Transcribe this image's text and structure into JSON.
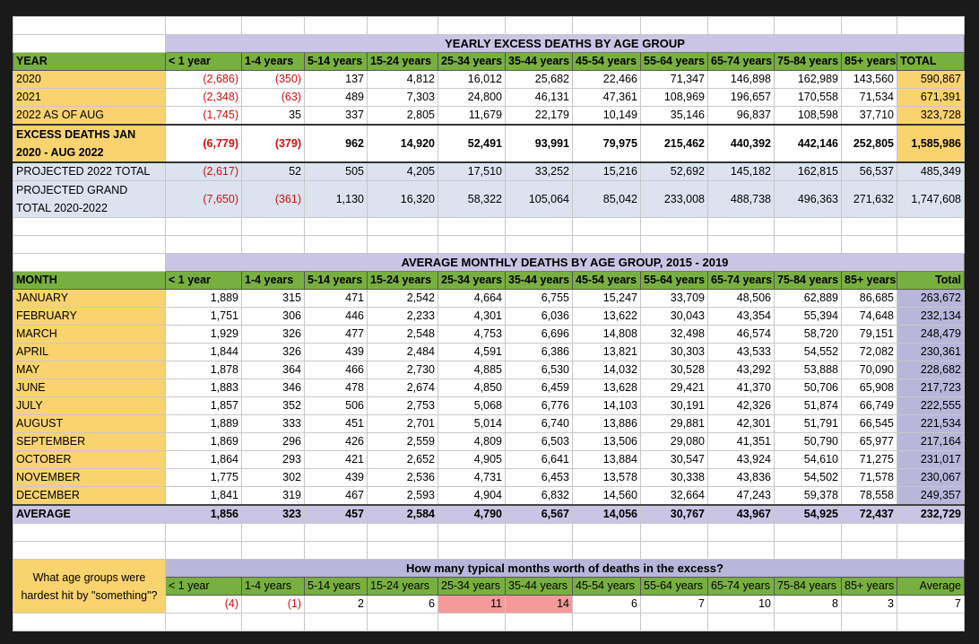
{
  "yearly": {
    "title": "YEARLY EXCESS DEATHS BY AGE GROUP",
    "headers": [
      "YEAR",
      "< 1 year",
      "1-4 years",
      "5-14 years",
      "15-24 years",
      "25-34 years",
      "35-44 years",
      "45-54 years",
      "55-64 years",
      "65-74 years",
      "75-84 years",
      "85+ years",
      "TOTAL"
    ],
    "rows": [
      [
        "2020",
        "(2,686)",
        "(350)",
        "137",
        "4,812",
        "16,012",
        "25,682",
        "22,466",
        "71,347",
        "146,898",
        "162,989",
        "143,560",
        "590,867"
      ],
      [
        "2021",
        "(2,348)",
        "(63)",
        "489",
        "7,303",
        "24,800",
        "46,131",
        "47,361",
        "108,969",
        "196,657",
        "170,558",
        "71,534",
        "671,391"
      ],
      [
        "2022 AS OF AUG",
        "(1,745)",
        "35",
        "337",
        "2,805",
        "11,679",
        "22,179",
        "10,149",
        "35,146",
        "96,837",
        "108,598",
        "37,710",
        "323,728"
      ],
      [
        "EXCESS DEATHS JAN 2020 - AUG 2022",
        "(6,779)",
        "(379)",
        "962",
        "14,920",
        "52,491",
        "93,991",
        "79,975",
        "215,462",
        "440,392",
        "442,146",
        "252,805",
        "1,585,986"
      ],
      [
        "PROJECTED 2022 TOTAL",
        "(2,617)",
        "52",
        "505",
        "4,205",
        "17,510",
        "33,252",
        "15,216",
        "52,692",
        "145,182",
        "162,815",
        "56,537",
        "485,349"
      ],
      [
        "PROJECTED GRAND TOTAL 2020-2022",
        "(7,650)",
        "(361)",
        "1,130",
        "16,320",
        "58,322",
        "105,064",
        "85,042",
        "233,008",
        "488,738",
        "496,363",
        "271,632",
        "1,747,608"
      ]
    ]
  },
  "monthly": {
    "title": "AVERAGE MONTHLY DEATHS BY AGE GROUP, 2015 - 2019",
    "headers": [
      "MONTH",
      "< 1 year",
      "1-4 years",
      "5-14 years",
      "15-24 years",
      "25-34 years",
      "35-44 years",
      "45-54 years",
      "55-64 years",
      "65-74 years",
      "75-84 years",
      "85+ years",
      "Total"
    ],
    "rows": [
      [
        "JANUARY",
        "1,889",
        "315",
        "471",
        "2,542",
        "4,664",
        "6,755",
        "15,247",
        "33,709",
        "48,506",
        "62,889",
        "86,685",
        "263,672"
      ],
      [
        "FEBRUARY",
        "1,751",
        "306",
        "446",
        "2,233",
        "4,301",
        "6,036",
        "13,622",
        "30,043",
        "43,354",
        "55,394",
        "74,648",
        "232,134"
      ],
      [
        "MARCH",
        "1,929",
        "326",
        "477",
        "2,548",
        "4,753",
        "6,696",
        "14,808",
        "32,498",
        "46,574",
        "58,720",
        "79,151",
        "248,479"
      ],
      [
        "APRIL",
        "1,844",
        "326",
        "439",
        "2,484",
        "4,591",
        "6,386",
        "13,821",
        "30,303",
        "43,533",
        "54,552",
        "72,082",
        "230,361"
      ],
      [
        "MAY",
        "1,878",
        "364",
        "466",
        "2,730",
        "4,885",
        "6,530",
        "14,032",
        "30,528",
        "43,292",
        "53,888",
        "70,090",
        "228,682"
      ],
      [
        "JUNE",
        "1,883",
        "346",
        "478",
        "2,674",
        "4,850",
        "6,459",
        "13,628",
        "29,421",
        "41,370",
        "50,706",
        "65,908",
        "217,723"
      ],
      [
        "JULY",
        "1,857",
        "352",
        "506",
        "2,753",
        "5,068",
        "6,776",
        "14,103",
        "30,191",
        "42,326",
        "51,874",
        "66,749",
        "222,555"
      ],
      [
        "AUGUST",
        "1,889",
        "333",
        "451",
        "2,701",
        "5,014",
        "6,740",
        "13,886",
        "29,881",
        "42,301",
        "51,791",
        "66,545",
        "221,534"
      ],
      [
        "SEPTEMBER",
        "1,869",
        "296",
        "426",
        "2,559",
        "4,809",
        "6,503",
        "13,506",
        "29,080",
        "41,351",
        "50,790",
        "65,977",
        "217,164"
      ],
      [
        "OCTOBER",
        "1,864",
        "293",
        "421",
        "2,652",
        "4,905",
        "6,641",
        "13,884",
        "30,547",
        "43,924",
        "54,610",
        "71,275",
        "231,017"
      ],
      [
        "NOVEMBER",
        "1,775",
        "302",
        "439",
        "2,536",
        "4,731",
        "6,453",
        "13,578",
        "30,338",
        "43,836",
        "54,502",
        "71,578",
        "230,067"
      ],
      [
        "DECEMBER",
        "1,841",
        "319",
        "467",
        "2,593",
        "4,904",
        "6,832",
        "14,560",
        "32,664",
        "47,243",
        "59,378",
        "78,558",
        "249,357"
      ]
    ],
    "average": [
      "AVERAGE",
      "1,856",
      "323",
      "457",
      "2,584",
      "4,790",
      "6,567",
      "14,056",
      "30,767",
      "43,967",
      "54,925",
      "72,437",
      "232,729"
    ]
  },
  "typical": {
    "question": "What age groups were hardest hit by \"something\"?",
    "title": "How many typical months worth of deaths in the excess?",
    "headers": [
      "< 1 year",
      "1-4 years",
      "5-14 years",
      "15-24 years",
      "25-34 years",
      "35-44 years",
      "45-54 years",
      "55-64 years",
      "65-74 years",
      "75-84 years",
      "85+ years",
      "Average"
    ],
    "values": [
      "(4)",
      "(1)",
      "2",
      "6",
      "11",
      "14",
      "6",
      "7",
      "10",
      "8",
      "3",
      "7"
    ]
  }
}
